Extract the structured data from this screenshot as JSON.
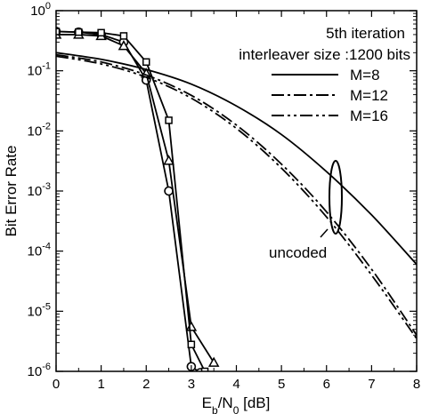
{
  "chart_data": {
    "type": "line",
    "xlabel": "E",
    "xlabel_sub1": "b",
    "xlabel_mid": "/N",
    "xlabel_sub2": "0",
    "xlabel_unit": " [dB]",
    "ylabel": "Bit Error Rate",
    "xlim": [
      0,
      8
    ],
    "ylim": [
      1e-06,
      1
    ],
    "yscale": "log",
    "x_ticks": [
      0,
      1,
      2,
      3,
      4,
      5,
      6,
      7,
      8
    ],
    "x_tick_labels": [
      "0",
      "1",
      "2",
      "3",
      "4",
      "5",
      "6",
      "7",
      "8"
    ],
    "y_ticks": [
      {
        "value": 1,
        "base": "10",
        "exp": "0"
      },
      {
        "value": 0.1,
        "base": "10",
        "exp": "-1"
      },
      {
        "value": 0.01,
        "base": "10",
        "exp": "-2"
      },
      {
        "value": 0.001,
        "base": "10",
        "exp": "-3"
      },
      {
        "value": 0.0001,
        "base": "10",
        "exp": "-4"
      },
      {
        "value": 1e-05,
        "base": "10",
        "exp": "-5"
      },
      {
        "value": 1e-06,
        "base": "10",
        "exp": "-6"
      }
    ],
    "annotations": {
      "line1": "5th iteration",
      "line2": "interleaver size :1200 bits",
      "uncoded": "uncoded"
    },
    "legend": {
      "placement": "top-right",
      "entries": [
        {
          "label": "M=8",
          "dash": "solid"
        },
        {
          "label": "M=12",
          "dash": "dash-dot"
        },
        {
          "label": "M=16",
          "dash": "dash-dot-dot"
        }
      ]
    },
    "series": [
      {
        "name": "M=8",
        "marker": "circle",
        "dash": "solid",
        "x": [
          0,
          0.5,
          1,
          1.5,
          2,
          2.5,
          3,
          3.2
        ],
        "y": [
          0.45,
          0.44,
          0.4,
          0.3,
          0.07,
          0.001,
          1.2e-06,
          9.5e-07
        ]
      },
      {
        "name": "M=12",
        "marker": "triangle",
        "dash": "solid",
        "x": [
          0,
          0.5,
          1,
          1.5,
          2,
          2.5,
          3,
          3.5
        ],
        "y": [
          0.4,
          0.4,
          0.38,
          0.26,
          0.09,
          0.0032,
          5.5e-06,
          1.4e-06
        ]
      },
      {
        "name": "M=16",
        "marker": "square",
        "dash": "solid",
        "x": [
          0,
          0.5,
          1,
          1.5,
          2,
          2.5,
          3,
          3.3
        ],
        "y": [
          0.45,
          0.44,
          0.43,
          0.38,
          0.14,
          0.015,
          2.8e-06,
          1e-06
        ]
      },
      {
        "name": "M=8 uncoded",
        "marker": "none",
        "dash": "solid",
        "x": [
          0,
          1,
          2,
          3,
          4,
          5,
          6,
          7,
          8
        ],
        "y": [
          0.2,
          0.155,
          0.105,
          0.06,
          0.026,
          0.0087,
          0.0021,
          0.0004,
          6e-05
        ]
      },
      {
        "name": "M=12 uncoded",
        "marker": "none",
        "dash": "dash-dot",
        "x": [
          0,
          1,
          2,
          3,
          4,
          5,
          6,
          7,
          8
        ],
        "y": [
          0.185,
          0.14,
          0.085,
          0.039,
          0.0125,
          0.0028,
          0.00045,
          5e-05,
          4e-06
        ]
      },
      {
        "name": "M=16 uncoded",
        "marker": "none",
        "dash": "dash-dot-dot",
        "x": [
          0,
          1,
          2,
          3,
          4,
          5,
          6,
          7,
          8
        ],
        "y": [
          0.175,
          0.13,
          0.078,
          0.035,
          0.011,
          0.0024,
          0.00037,
          4e-05,
          3.5e-06
        ]
      }
    ]
  }
}
